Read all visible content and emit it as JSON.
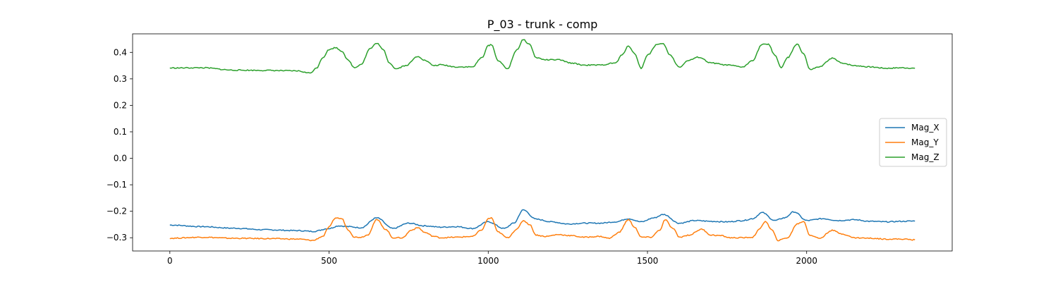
{
  "chart_data": {
    "type": "line",
    "title": "P_03 - trunk - comp",
    "xlabel": "",
    "ylabel": "",
    "xlim": [
      -117,
      2457
    ],
    "ylim": [
      -0.35,
      0.47
    ],
    "xticks": [
      0,
      500,
      1000,
      1500,
      2000
    ],
    "xtick_labels": [
      "0",
      "500",
      "1000",
      "1500",
      "2000"
    ],
    "yticks": [
      -0.3,
      -0.2,
      -0.1,
      0.0,
      0.1,
      0.2,
      0.3,
      0.4
    ],
    "ytick_labels": [
      "−0.3",
      "−0.2",
      "−0.1",
      "0.0",
      "0.1",
      "0.2",
      "0.3",
      "0.4"
    ],
    "grid": false,
    "legend_position": "center-right",
    "series": [
      {
        "name": "Mag_X",
        "color": "#1f77b4",
        "x": [
          0,
          100,
          200,
          300,
          400,
          450,
          500,
          530,
          560,
          600,
          650,
          700,
          750,
          800,
          850,
          900,
          950,
          1000,
          1050,
          1080,
          1110,
          1150,
          1200,
          1250,
          1300,
          1350,
          1400,
          1440,
          1480,
          1520,
          1550,
          1600,
          1650,
          1700,
          1750,
          1800,
          1830,
          1860,
          1900,
          1930,
          1960,
          2000,
          2050,
          2100,
          2150,
          2200,
          2250,
          2300,
          2340
        ],
        "y": [
          -0.252,
          -0.258,
          -0.264,
          -0.27,
          -0.273,
          -0.276,
          -0.265,
          -0.255,
          -0.258,
          -0.262,
          -0.225,
          -0.265,
          -0.245,
          -0.255,
          -0.26,
          -0.258,
          -0.265,
          -0.24,
          -0.265,
          -0.245,
          -0.195,
          -0.23,
          -0.24,
          -0.248,
          -0.245,
          -0.245,
          -0.24,
          -0.228,
          -0.24,
          -0.225,
          -0.212,
          -0.245,
          -0.235,
          -0.238,
          -0.24,
          -0.235,
          -0.228,
          -0.205,
          -0.235,
          -0.225,
          -0.202,
          -0.235,
          -0.228,
          -0.235,
          -0.232,
          -0.238,
          -0.24,
          -0.238,
          -0.237
        ]
      },
      {
        "name": "Mag_Y",
        "color": "#ff7f0e",
        "x": [
          0,
          100,
          200,
          300,
          400,
          450,
          480,
          500,
          520,
          540,
          560,
          580,
          600,
          620,
          650,
          680,
          700,
          730,
          760,
          780,
          800,
          830,
          850,
          900,
          950,
          980,
          1000,
          1010,
          1030,
          1060,
          1090,
          1110,
          1130,
          1150,
          1180,
          1220,
          1260,
          1300,
          1350,
          1380,
          1410,
          1440,
          1460,
          1480,
          1510,
          1540,
          1555,
          1580,
          1600,
          1630,
          1670,
          1700,
          1730,
          1760,
          1800,
          1830,
          1850,
          1870,
          1890,
          1910,
          1940,
          1970,
          1990,
          2010,
          2040,
          2080,
          2110,
          2150,
          2200,
          2250,
          2300,
          2340
        ],
        "y": [
          -0.302,
          -0.298,
          -0.302,
          -0.303,
          -0.305,
          -0.31,
          -0.295,
          -0.26,
          -0.225,
          -0.228,
          -0.27,
          -0.298,
          -0.298,
          -0.29,
          -0.232,
          -0.27,
          -0.3,
          -0.3,
          -0.27,
          -0.262,
          -0.28,
          -0.295,
          -0.3,
          -0.298,
          -0.295,
          -0.27,
          -0.228,
          -0.225,
          -0.278,
          -0.3,
          -0.268,
          -0.235,
          -0.25,
          -0.29,
          -0.295,
          -0.288,
          -0.292,
          -0.298,
          -0.295,
          -0.302,
          -0.28,
          -0.232,
          -0.26,
          -0.298,
          -0.298,
          -0.27,
          -0.232,
          -0.265,
          -0.298,
          -0.29,
          -0.268,
          -0.29,
          -0.292,
          -0.3,
          -0.3,
          -0.298,
          -0.27,
          -0.238,
          -0.27,
          -0.31,
          -0.3,
          -0.248,
          -0.238,
          -0.29,
          -0.302,
          -0.272,
          -0.285,
          -0.3,
          -0.302,
          -0.305,
          -0.305,
          -0.308
        ]
      },
      {
        "name": "Mag_Z",
        "color": "#2ca02c",
        "x": [
          0,
          100,
          200,
          300,
          400,
          440,
          460,
          480,
          500,
          520,
          540,
          560,
          580,
          600,
          630,
          650,
          670,
          690,
          710,
          740,
          780,
          800,
          830,
          850,
          900,
          950,
          980,
          1000,
          1010,
          1030,
          1060,
          1090,
          1110,
          1130,
          1150,
          1180,
          1220,
          1260,
          1300,
          1350,
          1400,
          1420,
          1440,
          1460,
          1480,
          1500,
          1530,
          1550,
          1570,
          1600,
          1630,
          1660,
          1700,
          1750,
          1800,
          1830,
          1860,
          1880,
          1900,
          1920,
          1940,
          1970,
          1990,
          2010,
          2040,
          2080,
          2110,
          2150,
          2200,
          2250,
          2300,
          2340
        ],
        "y": [
          0.341,
          0.342,
          0.333,
          0.332,
          0.33,
          0.322,
          0.34,
          0.38,
          0.41,
          0.418,
          0.405,
          0.37,
          0.342,
          0.355,
          0.415,
          0.435,
          0.41,
          0.36,
          0.338,
          0.35,
          0.385,
          0.37,
          0.35,
          0.353,
          0.345,
          0.345,
          0.38,
          0.425,
          0.43,
          0.37,
          0.338,
          0.41,
          0.448,
          0.43,
          0.38,
          0.372,
          0.372,
          0.36,
          0.352,
          0.352,
          0.36,
          0.39,
          0.425,
          0.395,
          0.34,
          0.39,
          0.43,
          0.432,
          0.39,
          0.345,
          0.37,
          0.382,
          0.36,
          0.352,
          0.345,
          0.37,
          0.43,
          0.43,
          0.39,
          0.342,
          0.38,
          0.432,
          0.395,
          0.335,
          0.345,
          0.378,
          0.36,
          0.35,
          0.345,
          0.34,
          0.342,
          0.34
        ]
      }
    ]
  }
}
